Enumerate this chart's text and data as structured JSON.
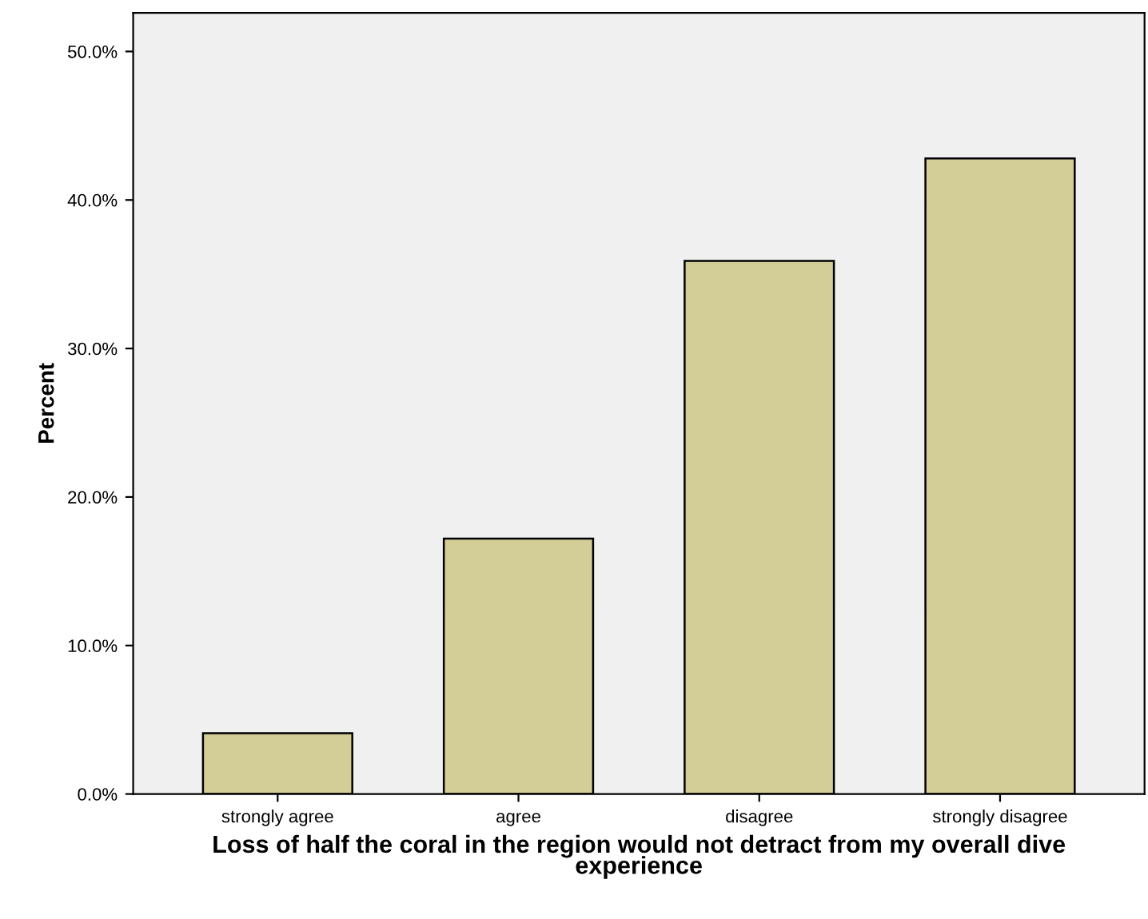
{
  "chart_data": {
    "type": "bar",
    "xlabel": "Loss of half the coral in the region would not detract from my overall dive\nexperience",
    "ylabel": "Percent",
    "categories": [
      "strongly agree",
      "agree",
      "disagree",
      "strongly disagree"
    ],
    "values": [
      4.1,
      17.2,
      35.9,
      42.8
    ],
    "color": "#d3ce97",
    "ylim": [
      0,
      52.6
    ],
    "yticks": [
      {
        "value": 0,
        "label": "0.0%"
      },
      {
        "value": 10,
        "label": "10.0%"
      },
      {
        "value": 20,
        "label": "20.0%"
      },
      {
        "value": 30,
        "label": "30.0%"
      },
      {
        "value": 40,
        "label": "40.0%"
      },
      {
        "value": 50,
        "label": "50.0%"
      }
    ],
    "grid": false
  }
}
